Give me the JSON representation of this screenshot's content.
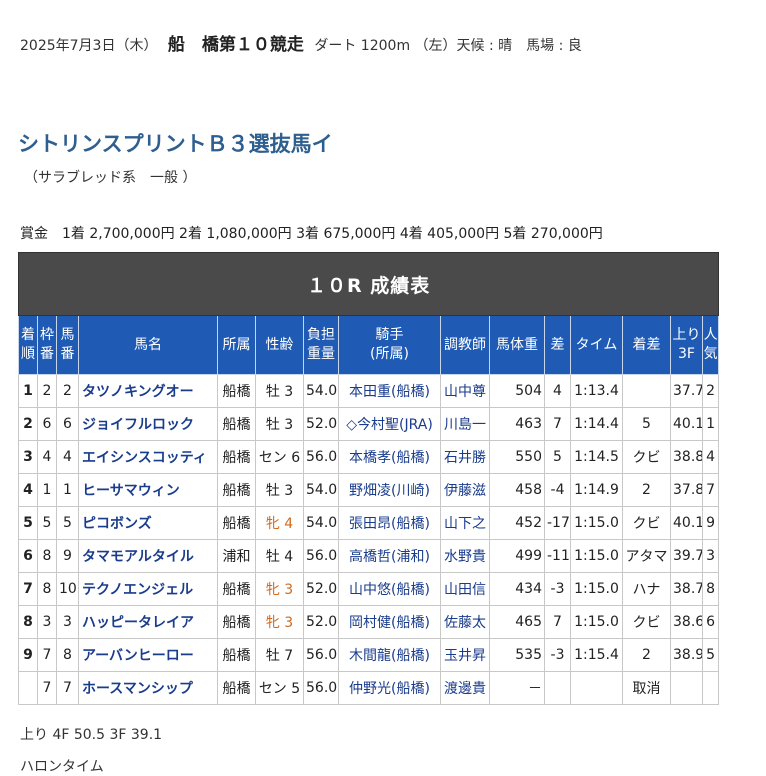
{
  "race_line": {
    "date": "2025年7月3日（木）",
    "track": "船　橋第１０競走",
    "detail": "ダート 1200m （左）天候 : 晴　馬場 : 良"
  },
  "race_name": "シトリンスプリントＢ３選抜馬イ",
  "race_class": "（サラブレッド系　一般 ）",
  "prize": "賞金　1着 2,700,000円  2着 1,080,000円  3着 675,000円  4着 405,000円  5着 270,000円",
  "table": {
    "caption": "１０R 成績表",
    "headers": {
      "rank": [
        "着",
        "順"
      ],
      "waku": [
        "枠",
        "番"
      ],
      "umaban": [
        "馬",
        "番"
      ],
      "horse": "馬名",
      "affiliation": "所属",
      "sex_age": "性齢",
      "weight_carried": [
        "負担",
        "重量"
      ],
      "jockey": [
        "騎手",
        "(所属)"
      ],
      "trainer": "調教師",
      "body_weight": "馬体重",
      "diff": "差",
      "time": "タイム",
      "margin": "着差",
      "last3f": [
        "上り",
        "3F"
      ],
      "popularity": [
        "人",
        "気"
      ]
    },
    "rows": [
      {
        "rank": "1",
        "waku": "2",
        "umaban": "2",
        "horse": "タツノキングオー",
        "affiliation": "船橋",
        "sex_age": "牡 3",
        "weight_carried": "54.0",
        "jockey": "本田重(船橋)",
        "trainer": "山中尊",
        "body_weight": "504",
        "diff": "4",
        "time": "1:13.4",
        "margin": "",
        "last3f": "37.7",
        "popularity": "2",
        "female": false
      },
      {
        "rank": "2",
        "waku": "6",
        "umaban": "6",
        "horse": "ジョイフルロック",
        "affiliation": "船橋",
        "sex_age": "牡 3",
        "weight_carried": "52.0",
        "jockey": "◇今村聖(JRA)",
        "trainer": "川島一",
        "body_weight": "463",
        "diff": "7",
        "time": "1:14.4",
        "margin": "5",
        "last3f": "40.1",
        "popularity": "1",
        "female": false
      },
      {
        "rank": "3",
        "waku": "4",
        "umaban": "4",
        "horse": "エイシンスコッティ",
        "affiliation": "船橋",
        "sex_age": "セン 6",
        "weight_carried": "56.0",
        "jockey": "本橋孝(船橋)",
        "trainer": "石井勝",
        "body_weight": "550",
        "diff": "5",
        "time": "1:14.5",
        "margin": "クビ",
        "last3f": "38.8",
        "popularity": "4",
        "female": false
      },
      {
        "rank": "4",
        "waku": "1",
        "umaban": "1",
        "horse": "ヒーサマウィン",
        "affiliation": "船橋",
        "sex_age": "牡 3",
        "weight_carried": "54.0",
        "jockey": "野畑凌(川崎)",
        "trainer": "伊藤滋",
        "body_weight": "458",
        "diff": "-4",
        "time": "1:14.9",
        "margin": "2",
        "last3f": "37.8",
        "popularity": "7",
        "female": false
      },
      {
        "rank": "5",
        "waku": "5",
        "umaban": "5",
        "horse": "ピコボンズ",
        "affiliation": "船橋",
        "sex_age": "牝 4",
        "weight_carried": "54.0",
        "jockey": "張田昂(船橋)",
        "trainer": "山下之",
        "body_weight": "452",
        "diff": "-17",
        "time": "1:15.0",
        "margin": "クビ",
        "last3f": "40.1",
        "popularity": "9",
        "female": true
      },
      {
        "rank": "6",
        "waku": "8",
        "umaban": "9",
        "horse": "タマモアルタイル",
        "affiliation": "浦和",
        "sex_age": "牡 4",
        "weight_carried": "56.0",
        "jockey": "高橋哲(浦和)",
        "trainer": "水野貴",
        "body_weight": "499",
        "diff": "-11",
        "time": "1:15.0",
        "margin": "アタマ",
        "last3f": "39.7",
        "popularity": "3",
        "female": false
      },
      {
        "rank": "7",
        "waku": "8",
        "umaban": "10",
        "horse": "テクノエンジェル",
        "affiliation": "船橋",
        "sex_age": "牝 3",
        "weight_carried": "52.0",
        "jockey": "山中悠(船橋)",
        "trainer": "山田信",
        "body_weight": "434",
        "diff": "-3",
        "time": "1:15.0",
        "margin": "ハナ",
        "last3f": "38.7",
        "popularity": "8",
        "female": true
      },
      {
        "rank": "8",
        "waku": "3",
        "umaban": "3",
        "horse": "ハッピータレイア",
        "affiliation": "船橋",
        "sex_age": "牝 3",
        "weight_carried": "52.0",
        "jockey": "岡村健(船橋)",
        "trainer": "佐藤太",
        "body_weight": "465",
        "diff": "7",
        "time": "1:15.0",
        "margin": "クビ",
        "last3f": "38.6",
        "popularity": "6",
        "female": true
      },
      {
        "rank": "9",
        "waku": "7",
        "umaban": "8",
        "horse": "アーバンヒーロー",
        "affiliation": "船橋",
        "sex_age": "牡 7",
        "weight_carried": "56.0",
        "jockey": "木間龍(船橋)",
        "trainer": "玉井昇",
        "body_weight": "535",
        "diff": "-3",
        "time": "1:15.4",
        "margin": "2",
        "last3f": "38.9",
        "popularity": "5",
        "female": false
      },
      {
        "rank": "",
        "waku": "7",
        "umaban": "7",
        "horse": "ホースマンシップ",
        "affiliation": "船橋",
        "sex_age": "セン 5",
        "weight_carried": "56.0",
        "jockey": "仲野光(船橋)",
        "trainer": "渡邊貴",
        "body_weight": "－",
        "diff": "",
        "time": "",
        "margin": "取消",
        "last3f": "",
        "popularity": "",
        "female": false
      }
    ]
  },
  "agari": "上り 4F 50.5 3F 39.1",
  "furlong_label": "ハロンタイム",
  "colors": {
    "title_blue": "#2f5f8e",
    "header_blue": "#1f5bb5",
    "caption_gray": "#4a4a4a",
    "horse_link": "#1a3c8c",
    "female_orange": "#d26a1e"
  }
}
